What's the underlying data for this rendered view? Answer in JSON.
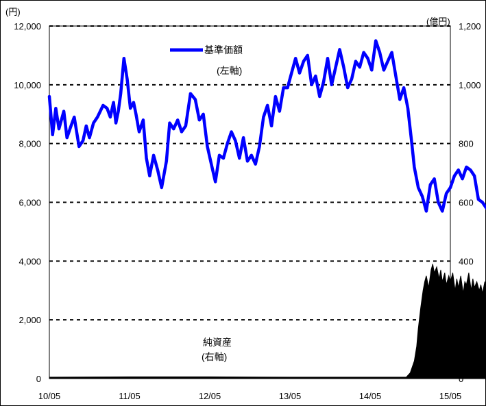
{
  "chart_data": {
    "type": "line",
    "left_axis": {
      "unit": "(円)",
      "range": [
        0,
        12000
      ],
      "ticks": [
        "12,000",
        "10,000",
        "8,000",
        "6,000",
        "4,000",
        "2,000",
        "0"
      ]
    },
    "right_axis": {
      "unit": "(億円)",
      "range": [
        0,
        1200
      ],
      "ticks": [
        "1,200",
        "1,000",
        "800",
        "600",
        "400",
        "200",
        "0"
      ]
    },
    "x_ticks": [
      "10/05",
      "11/05",
      "12/05",
      "13/05",
      "14/05",
      "15/05"
    ],
    "grid": "horizontal dashed",
    "series": [
      {
        "name": "基準価額",
        "axis_note": "(左軸)",
        "axis": "left",
        "style": "line",
        "color": "#0000ff",
        "x": [
          0.0,
          0.04,
          0.08,
          0.12,
          0.18,
          0.22,
          0.27,
          0.31,
          0.37,
          0.42,
          0.46,
          0.5,
          0.55,
          0.6,
          0.67,
          0.72,
          0.76,
          0.8,
          0.83,
          0.86,
          0.89,
          0.93,
          0.97,
          1.01,
          1.05,
          1.08,
          1.12,
          1.17,
          1.21,
          1.25,
          1.3,
          1.35,
          1.4,
          1.46,
          1.5,
          1.55,
          1.6,
          1.65,
          1.7,
          1.76,
          1.82,
          1.87,
          1.92,
          1.97,
          2.02,
          2.07,
          2.12,
          2.17,
          2.22,
          2.27,
          2.32,
          2.37,
          2.42,
          2.47,
          2.52,
          2.57,
          2.62,
          2.67,
          2.72,
          2.77,
          2.82,
          2.87,
          2.92,
          2.97,
          3.02,
          3.07,
          3.12,
          3.17,
          3.22,
          3.27,
          3.32,
          3.37,
          3.42,
          3.47,
          3.52,
          3.57,
          3.62,
          3.67,
          3.72,
          3.77,
          3.82,
          3.87,
          3.92,
          3.97,
          4.02,
          4.07,
          4.12,
          4.17,
          4.22,
          4.27,
          4.32,
          4.37,
          4.42,
          4.47,
          4.52,
          4.55,
          4.6,
          4.65,
          4.7,
          4.75,
          4.8,
          4.85,
          4.9,
          4.95,
          5.0,
          5.05,
          5.1,
          5.15,
          5.2,
          5.25,
          5.3,
          5.35,
          5.4,
          5.45,
          5.5,
          5.55
        ],
        "values": [
          9600,
          8300,
          9200,
          8500,
          9100,
          8200,
          8600,
          8900,
          7900,
          8100,
          8600,
          8200,
          8700,
          8900,
          9300,
          9200,
          8900,
          9400,
          8700,
          9100,
          9700,
          10900,
          10200,
          9200,
          9400,
          9000,
          8400,
          8800,
          7500,
          6900,
          7600,
          7100,
          6500,
          7400,
          8700,
          8500,
          8800,
          8400,
          8600,
          9700,
          9500,
          8800,
          9000,
          7900,
          7300,
          6700,
          7600,
          7500,
          8000,
          8400,
          8100,
          7500,
          8200,
          7400,
          7600,
          7300,
          7900,
          8900,
          9300,
          8600,
          9600,
          9100,
          9900,
          9900,
          10400,
          10900,
          10400,
          10800,
          11000,
          10000,
          10300,
          9600,
          10100,
          10900,
          10000,
          10600,
          11200,
          10600,
          9900,
          10200,
          10800,
          10600,
          11100,
          10900,
          10500,
          11500,
          11100,
          10500,
          10800,
          11100,
          10300,
          9500,
          9900,
          9200,
          8000,
          7200,
          6500,
          6200,
          5700,
          6600,
          6800,
          6000,
          5700,
          6300,
          6500,
          6900,
          7100,
          6800,
          7200,
          7100,
          6900,
          6100,
          6000,
          5800,
          5700,
          5600
        ]
      },
      {
        "name": "純資産",
        "axis_note": "(右軸)",
        "axis": "right",
        "style": "area",
        "color": "#000000",
        "x": [
          0.0,
          1.0,
          2.0,
          3.0,
          4.0,
          4.45,
          4.5,
          4.55,
          4.58,
          4.6,
          4.63,
          4.66,
          4.68,
          4.7,
          4.73,
          4.76,
          4.78,
          4.8,
          4.83,
          4.86,
          4.88,
          4.9,
          4.93,
          4.95,
          4.98,
          5.0,
          5.03,
          5.06,
          5.08,
          5.1,
          5.13,
          5.16,
          5.18,
          5.2,
          5.23,
          5.26,
          5.28,
          5.3,
          5.33,
          5.36,
          5.38,
          5.4,
          5.43,
          5.46,
          5.48,
          5.5,
          5.53,
          5.55
        ],
        "values": [
          5,
          6,
          6,
          5,
          5,
          5,
          20,
          60,
          110,
          170,
          240,
          300,
          330,
          350,
          310,
          370,
          390,
          360,
          380,
          340,
          370,
          330,
          360,
          320,
          350,
          330,
          360,
          300,
          340,
          310,
          350,
          290,
          330,
          320,
          360,
          300,
          340,
          310,
          330,
          300,
          320,
          290,
          330,
          300,
          340,
          320,
          350,
          330
        ]
      }
    ]
  }
}
